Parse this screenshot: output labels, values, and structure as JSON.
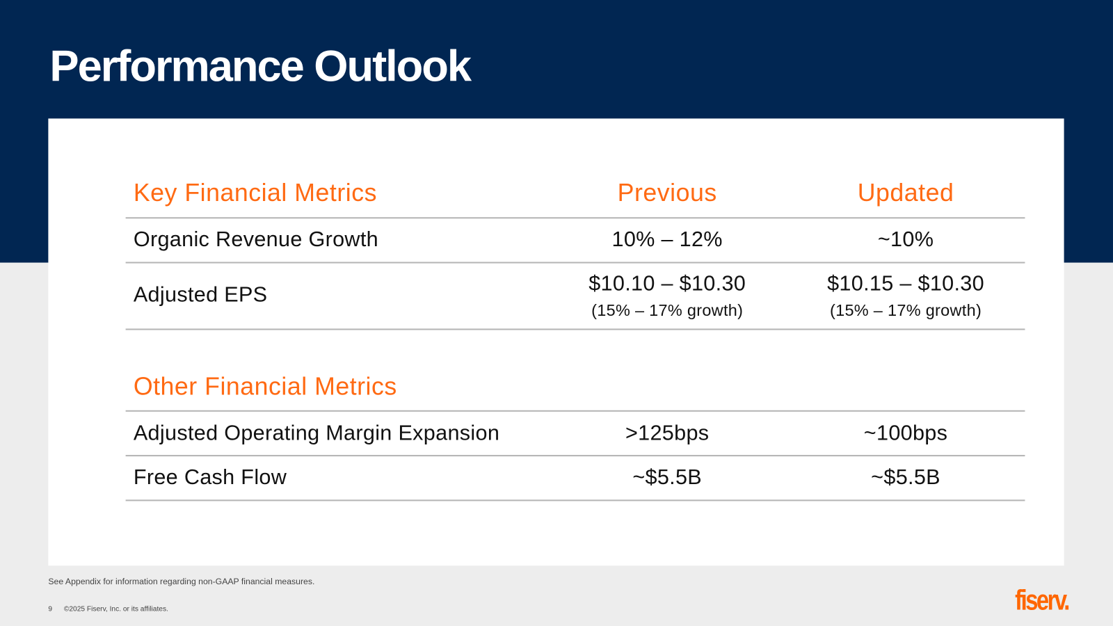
{
  "title": "Performance Outlook",
  "key_section": {
    "header": "Key Financial Metrics",
    "col_previous": "Previous",
    "col_updated": "Updated",
    "rows": [
      {
        "label": "Organic Revenue Growth",
        "previous": "10% – 12%",
        "updated": "~10%"
      },
      {
        "label": "Adjusted EPS",
        "previous": "$10.10 – $10.30",
        "previous_sub": "(15% – 17% growth)",
        "updated": "$10.15 – $10.30",
        "updated_sub": "(15% – 17% growth)"
      }
    ]
  },
  "other_section": {
    "header": "Other Financial Metrics",
    "rows": [
      {
        "label": "Adjusted Operating Margin Expansion",
        "previous": ">125bps",
        "updated": "~100bps"
      },
      {
        "label": "Free Cash Flow",
        "previous": "~$5.5B",
        "updated": "~$5.5B"
      }
    ]
  },
  "footer": {
    "note": "See Appendix for information regarding non-GAAP financial measures.",
    "page_number": "9",
    "copyright": "©2025 Fiserv, Inc. or its affiliates.",
    "logo": "fiserv."
  },
  "colors": {
    "navy": "#012652",
    "accent": "#ff6600",
    "background": "#ededed"
  }
}
